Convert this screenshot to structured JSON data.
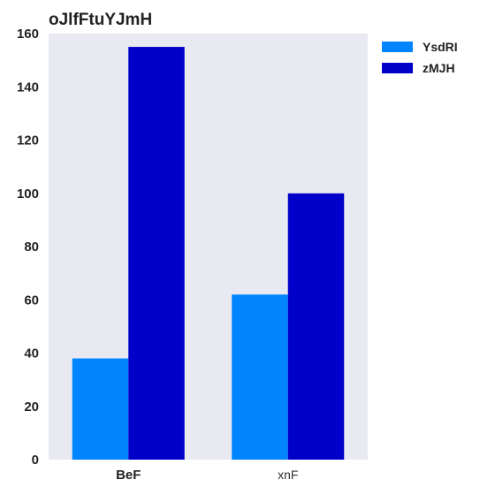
{
  "chart_data": {
    "type": "bar",
    "title": "oJlfFtuYJmH",
    "xlabel": "",
    "ylabel": "",
    "categories": [
      "BeF",
      "xnF"
    ],
    "series": [
      {
        "name": "YsdRI",
        "values": [
          38,
          62
        ],
        "color": "#0085ff"
      },
      {
        "name": "zMJH",
        "values": [
          155,
          100
        ],
        "color": "#0000c8"
      }
    ],
    "ylim": [
      0,
      160
    ],
    "yticks": [
      "0",
      "20",
      "40",
      "60",
      "80",
      "100",
      "120",
      "140",
      "160"
    ],
    "grid": false,
    "legend_position": "top-right",
    "plot_background": "#e9e9f2"
  }
}
